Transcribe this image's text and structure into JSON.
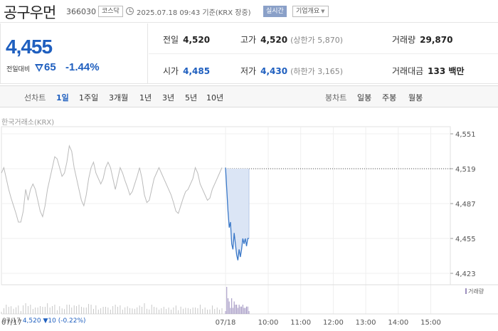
{
  "header": {
    "stock_name": "공구우먼",
    "stock_code": "366030",
    "market": "코스닥",
    "datetime": "2025.07.18 09:43 기준(KRX 장중)",
    "realtime_label": "실시간",
    "corp_info_label": "기업개요",
    "corp_info_caret": "▼"
  },
  "price": {
    "current": "4,455",
    "change_label": "전일대비",
    "change_amount": "65",
    "change_percent": "-1.44%",
    "direction": "down"
  },
  "quote": {
    "prev_close": {
      "label": "전일",
      "value": "4,520"
    },
    "high": {
      "label": "고가",
      "value": "4,520",
      "sub": "(상한가 5,870)"
    },
    "volume": {
      "label": "거래량",
      "value": "29,870"
    },
    "open": {
      "label": "시가",
      "value": "4,485"
    },
    "low": {
      "label": "저가",
      "value": "4,430",
      "sub": "(하한가 3,165)"
    },
    "amount": {
      "label": "거래대금",
      "value": "133 백만"
    }
  },
  "line_chart_tabs": {
    "label": "선차트",
    "items": [
      "1일",
      "1주일",
      "3개월",
      "1년",
      "3년",
      "5년",
      "10년"
    ],
    "active": "1일"
  },
  "candle_chart_tabs": {
    "label": "봉차트",
    "items": [
      "일봉",
      "주봉",
      "월봉"
    ]
  },
  "chart": {
    "exchange_label": "한국거래소(KRX)",
    "legend": "거래량",
    "colors": {
      "line": "#3a78c8",
      "prev_line": "#bbbbbb",
      "fill": "#dbe5f5",
      "volume": "#9c8fbe",
      "ref_line": "#555555"
    }
  },
  "bottom_info": {
    "date": "07/17",
    "price": "4,520",
    "change": "▼10 (-0.22%)"
  },
  "chart_data": {
    "type": "line",
    "y_ticks": [
      "4,551",
      "4,519",
      "4,487",
      "4,455",
      "4,423"
    ],
    "ylim": [
      4423,
      4551
    ],
    "x_ticks": [
      "07/17",
      "07/18",
      "10:00",
      "11:00",
      "12:00",
      "13:00",
      "14:00",
      "15:00"
    ],
    "reference_price": 4519,
    "series": [
      {
        "name": "",
        "date": "07/17",
        "values": [
          4515,
          4520,
          4510,
          4500,
          4492,
          4485,
          4478,
          4470,
          4470,
          4480,
          4500,
          4490,
          4500,
          4505,
          4500,
          4490,
          4480,
          4475,
          4485,
          4500,
          4510,
          4520,
          4530,
          4528,
          4520,
          4512,
          4515,
          4525,
          4540,
          4535,
          4520,
          4510,
          4500,
          4490,
          4485,
          4495,
          4510,
          4520,
          4525,
          4515,
          4510,
          4505,
          4510,
          4520,
          4525,
          4520,
          4510,
          4500,
          4510,
          4520,
          4515,
          4508,
          4502,
          4495,
          4498,
          4505,
          4512,
          4520,
          4510,
          4495,
          4488,
          4490,
          4500,
          4510,
          4515,
          4520,
          4515,
          4510,
          4505,
          4500,
          4495,
          4488,
          4480,
          4478,
          4485,
          4492,
          4498,
          4500,
          4505,
          4510,
          4520,
          4515,
          4505,
          4500,
          4495,
          4490,
          4492,
          4500,
          4505,
          4510,
          4515,
          4520
        ]
      },
      {
        "name": "",
        "date": "07/18",
        "values": [
          4520,
          4500,
          4480,
          4465,
          4470,
          4450,
          4445,
          4460,
          4450,
          4440,
          4435,
          4445,
          4438,
          4445,
          4455,
          4450,
          4455,
          4448,
          4455,
          4455
        ]
      }
    ]
  }
}
